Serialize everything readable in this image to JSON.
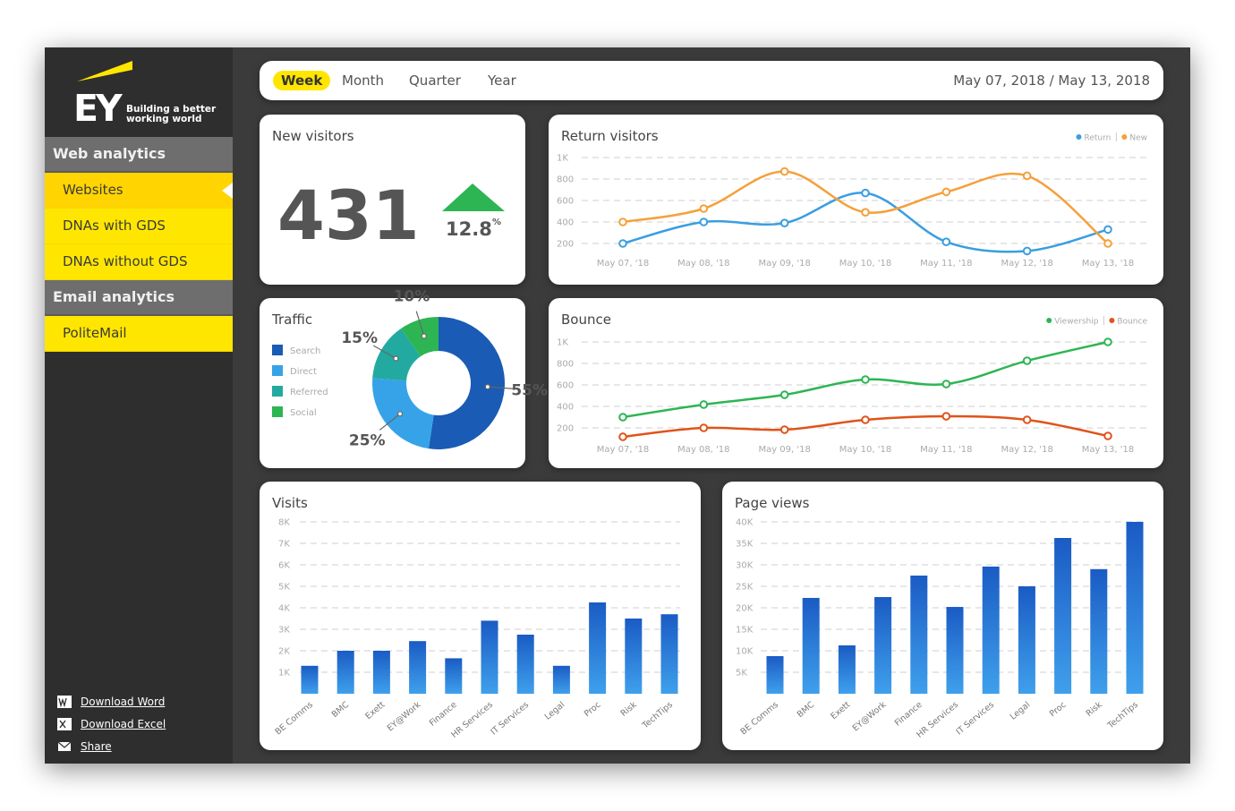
{
  "brand": {
    "logo": "EY",
    "tagline": [
      "Building a better",
      "working world"
    ]
  },
  "sidebar": {
    "sections": [
      {
        "title": "Web analytics",
        "items": [
          "Websites",
          "DNAs with GDS",
          "DNAs without GDS"
        ]
      },
      {
        "title": "Email analytics",
        "items": [
          "PoliteMail"
        ]
      }
    ],
    "downloads": [
      "Download Word",
      "Download Excel",
      "Share"
    ]
  },
  "toolbar": {
    "periods": [
      "Week",
      "Month",
      "Quarter",
      "Year"
    ],
    "date_range": "May 07, 2018 / May 13, 2018"
  },
  "new_visitors": {
    "title": "New visitors",
    "value": 431,
    "change": 12.8,
    "change_unit": "%"
  },
  "chart_data": [
    {
      "type": "line",
      "title": "Return visitors",
      "categories": [
        "May 07, '18",
        "May 08, '18",
        "May 09, '18",
        "May 10, '18",
        "May 11, '18",
        "May 12, '18",
        "May 13, '18"
      ],
      "series": [
        {
          "name": "Return",
          "color": "#3a9ee0",
          "values": [
            200,
            400,
            390,
            670,
            215,
            130,
            330
          ]
        },
        {
          "name": "New",
          "color": "#f5a03a",
          "values": [
            400,
            525,
            870,
            490,
            680,
            830,
            200
          ]
        }
      ],
      "ylim": [
        0,
        1000
      ],
      "yticks": [
        200,
        400,
        600,
        800,
        {
          "value": 1000,
          "label": "1K"
        }
      ],
      "grid": true,
      "legend": "top-right"
    },
    {
      "type": "pie",
      "title": "Traffic",
      "categories": [
        "Search",
        "Direct",
        "Referred",
        "Social"
      ],
      "values": [
        55,
        25,
        15,
        10
      ],
      "value_labels": [
        "55%",
        "25%",
        "15%",
        "10%"
      ],
      "colors": [
        "#1a5bb5",
        "#36a3e8",
        "#22aaa0",
        "#2db553"
      ],
      "legend": "left"
    },
    {
      "type": "line",
      "title": "Bounce",
      "categories": [
        "May 07, '18",
        "May 08, '18",
        "May 09, '18",
        "May 10, '18",
        "May 11, '18",
        "May 12, '18",
        "May 13, '18"
      ],
      "series": [
        {
          "name": "Viewership",
          "color": "#2db553",
          "values": [
            300,
            417,
            508,
            650,
            608,
            825,
            1000
          ]
        },
        {
          "name": "Bounce",
          "color": "#e0531a",
          "values": [
            117,
            200,
            183,
            275,
            308,
            275,
            125
          ]
        }
      ],
      "ylim": [
        0,
        1000
      ],
      "yticks": [
        200,
        400,
        600,
        800,
        {
          "value": 1000,
          "label": "1K"
        }
      ],
      "grid": true,
      "legend": "top-right"
    },
    {
      "type": "bar",
      "title": "Visits",
      "categories": [
        "BE Comms",
        "BMC",
        "Exett",
        "EY@Work",
        "Finance",
        "HR Services",
        "IT Services",
        "Legal",
        "Proc",
        "Risk",
        "TechTips"
      ],
      "values": [
        1300,
        2000,
        2000,
        2450,
        1650,
        3400,
        2750,
        1300,
        4250,
        3500,
        3700
      ],
      "color": "#1a5bc4",
      "ylim": [
        0,
        8000
      ],
      "yticks": [
        {
          "value": 1000,
          "label": "1K"
        },
        {
          "value": 2000,
          "label": "2K"
        },
        {
          "value": 3000,
          "label": "3K"
        },
        {
          "value": 4000,
          "label": "4K"
        },
        {
          "value": 5000,
          "label": "5K"
        },
        {
          "value": 6000,
          "label": "6K"
        },
        {
          "value": 7000,
          "label": "7K"
        },
        {
          "value": 8000,
          "label": "8K"
        }
      ],
      "grid": true
    },
    {
      "type": "bar",
      "title": "Page views",
      "categories": [
        "BE Comms",
        "BMC",
        "Exett",
        "EY@Work",
        "Finance",
        "HR Services",
        "IT Services",
        "Legal",
        "Proc",
        "Risk",
        "TechTips"
      ],
      "values": [
        8750,
        22300,
        11250,
        22500,
        27500,
        20200,
        29600,
        25000,
        36250,
        29000,
        40000
      ],
      "color": "#1a5bc4",
      "ylim": [
        0,
        40000
      ],
      "yticks": [
        {
          "value": 5000,
          "label": "5K"
        },
        {
          "value": 10000,
          "label": "10K"
        },
        {
          "value": 15000,
          "label": "15K"
        },
        {
          "value": 20000,
          "label": "20K"
        },
        {
          "value": 25000,
          "label": "25K"
        },
        {
          "value": 30000,
          "label": "30K"
        },
        {
          "value": 35000,
          "label": "35K"
        },
        {
          "value": 40000,
          "label": "40K"
        }
      ],
      "grid": true
    }
  ]
}
